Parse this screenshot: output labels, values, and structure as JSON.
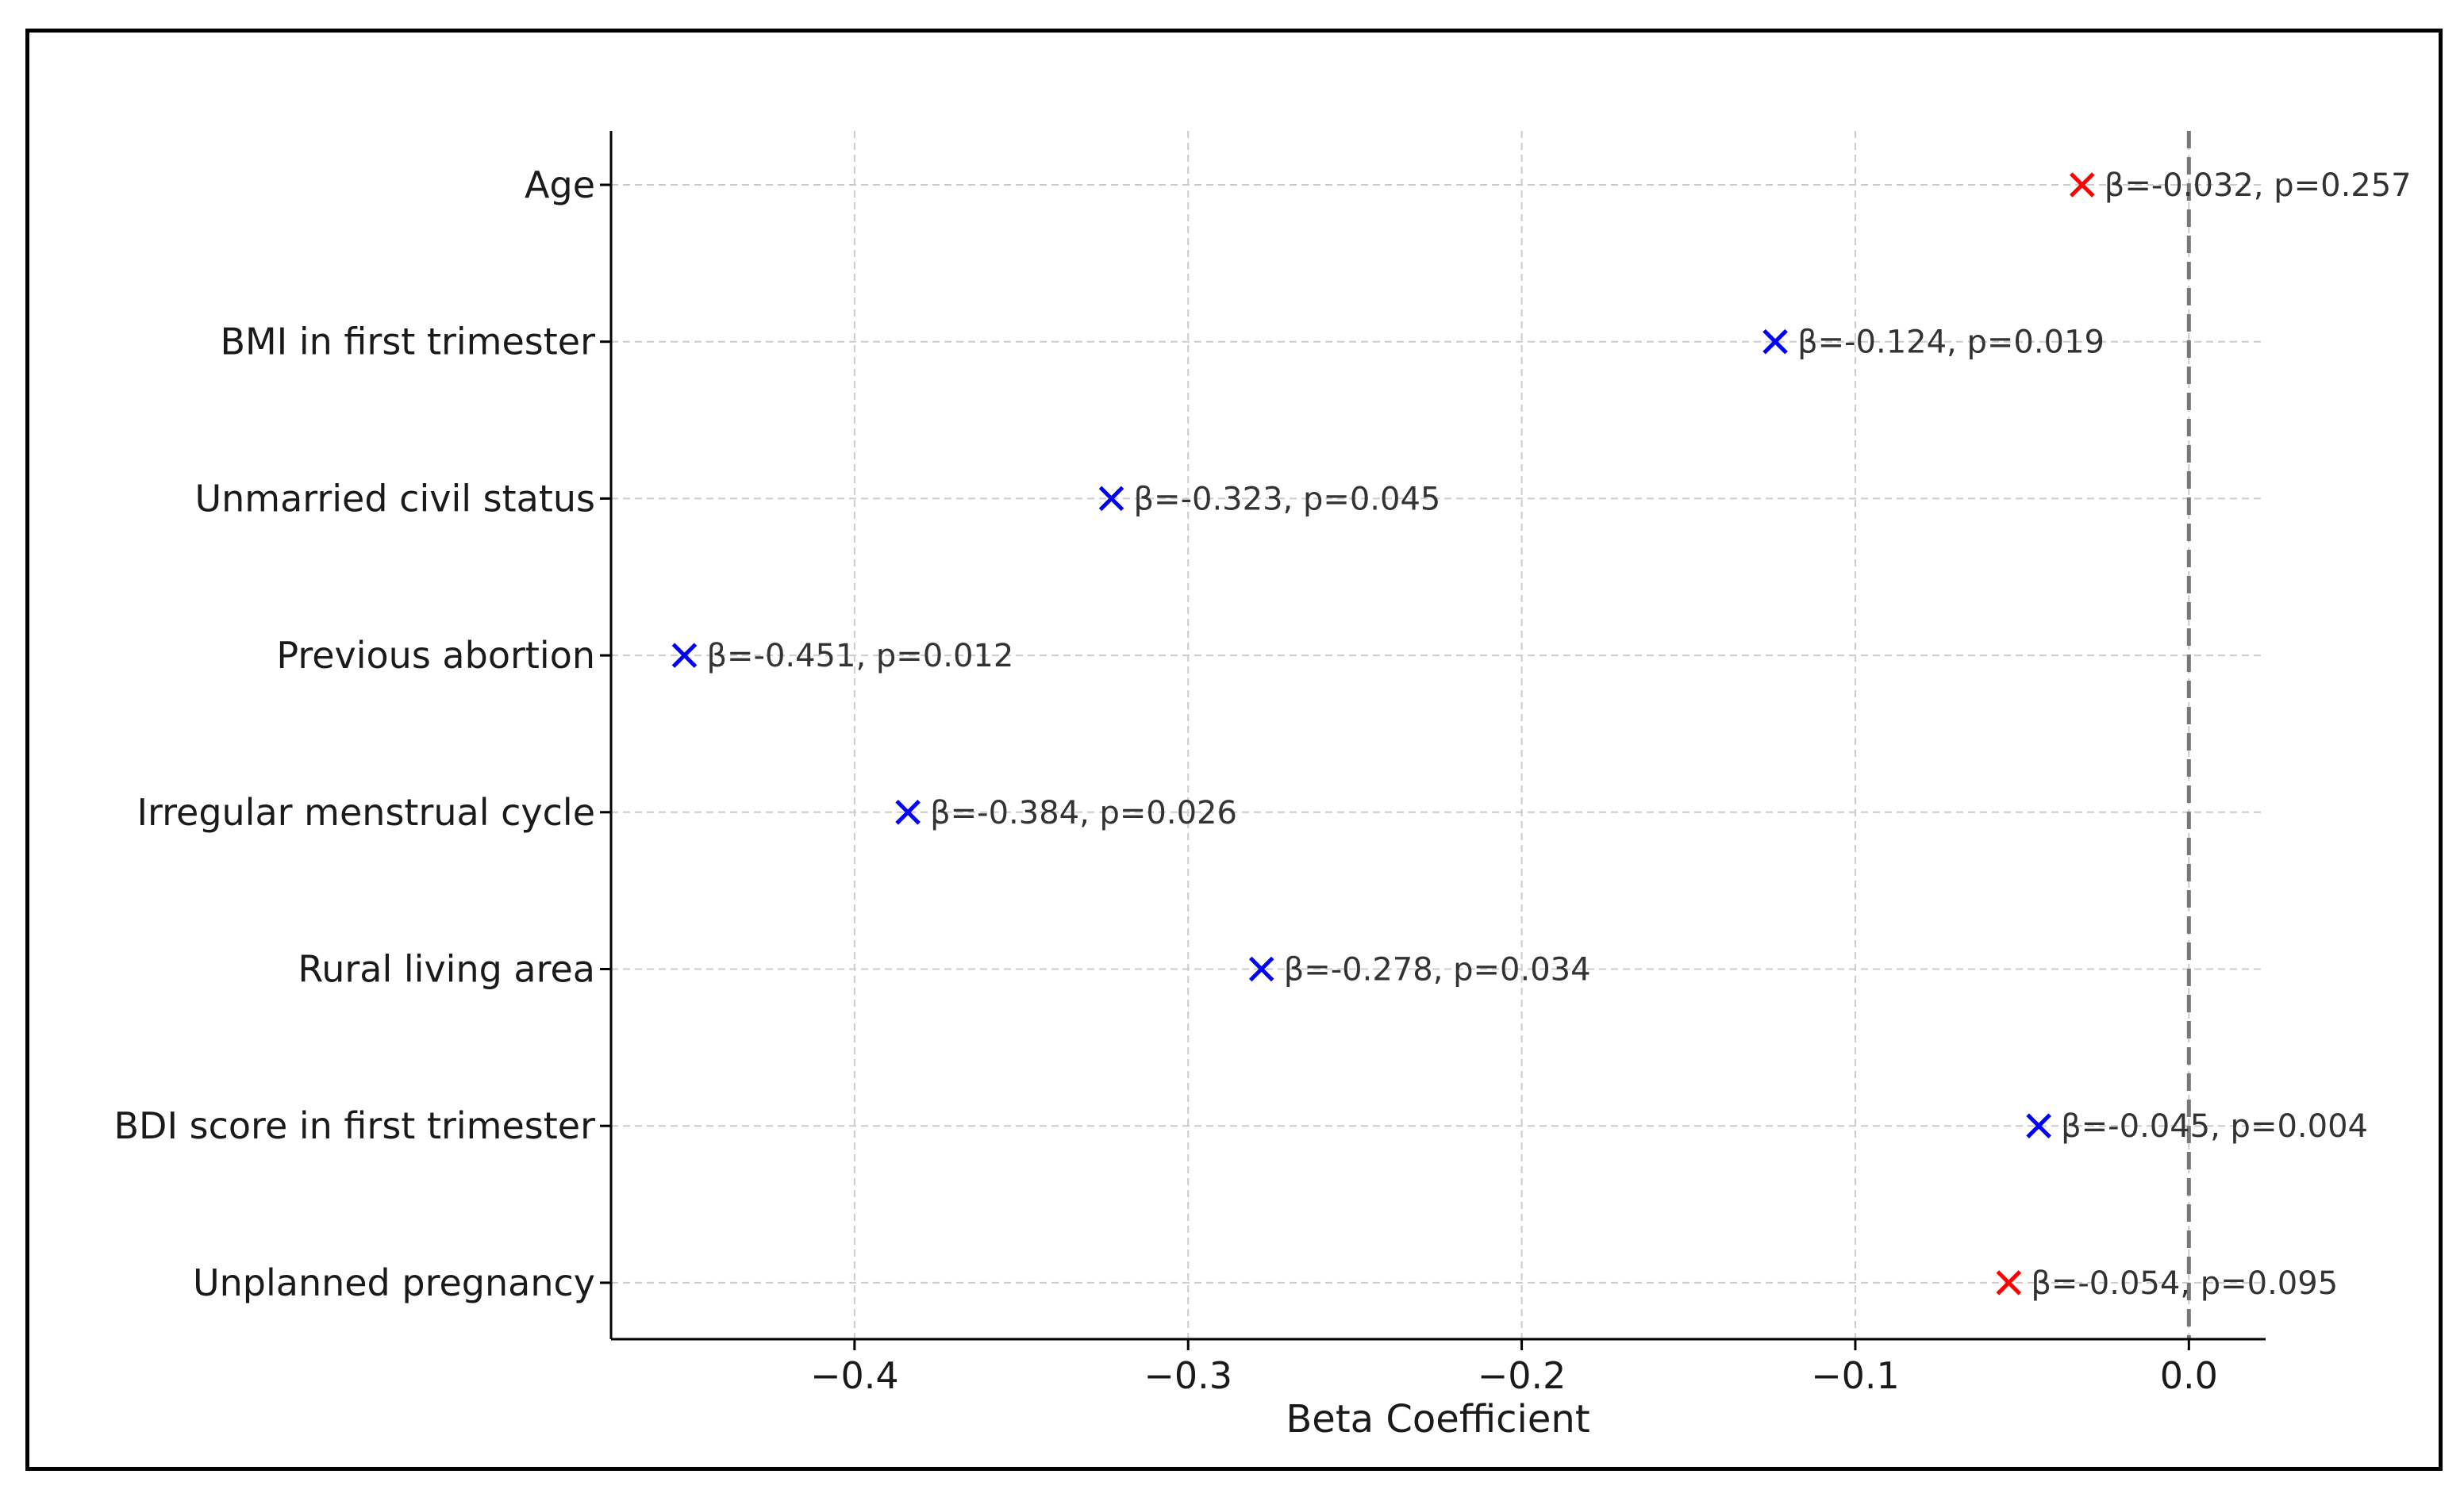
{
  "chart_data": {
    "type": "scatter",
    "title": "",
    "xlabel": "Beta Coefficient",
    "ylabel": "",
    "xlim": [
      -0.473,
      0.023
    ],
    "xticks": [
      -0.4,
      -0.3,
      -0.2,
      -0.1,
      0.0
    ],
    "xtick_labels": [
      "−0.4",
      "−0.3",
      "−0.2",
      "−0.1",
      "0.0"
    ],
    "grid": true,
    "reference_line": {
      "x": 0.0,
      "style": "dashed"
    },
    "colors": {
      "significant": "#0000ff",
      "not_significant": "#ff0000",
      "reference": "#777777",
      "grid": "#cccccc"
    },
    "points": [
      {
        "label": "Age",
        "beta": -0.032,
        "p": 0.257,
        "significant": false,
        "annotation": "β=-0.032, p=0.257"
      },
      {
        "label": "BMI in first trimester",
        "beta": -0.124,
        "p": 0.019,
        "significant": true,
        "annotation": "β=-0.124, p=0.019"
      },
      {
        "label": "Unmarried civil status",
        "beta": -0.323,
        "p": 0.045,
        "significant": true,
        "annotation": "β=-0.323, p=0.045"
      },
      {
        "label": "Previous abortion",
        "beta": -0.451,
        "p": 0.012,
        "significant": true,
        "annotation": "β=-0.451, p=0.012"
      },
      {
        "label": "Irregular menstrual cycle",
        "beta": -0.384,
        "p": 0.026,
        "significant": true,
        "annotation": "β=-0.384, p=0.026"
      },
      {
        "label": "Rural living area",
        "beta": -0.278,
        "p": 0.034,
        "significant": true,
        "annotation": "β=-0.278, p=0.034"
      },
      {
        "label": "BDI score in first trimester",
        "beta": -0.045,
        "p": 0.004,
        "significant": true,
        "annotation": "β=-0.045, p=0.004"
      },
      {
        "label": "Unplanned pregnancy",
        "beta": -0.054,
        "p": 0.095,
        "significant": false,
        "annotation": "β=-0.054, p=0.095"
      }
    ]
  }
}
